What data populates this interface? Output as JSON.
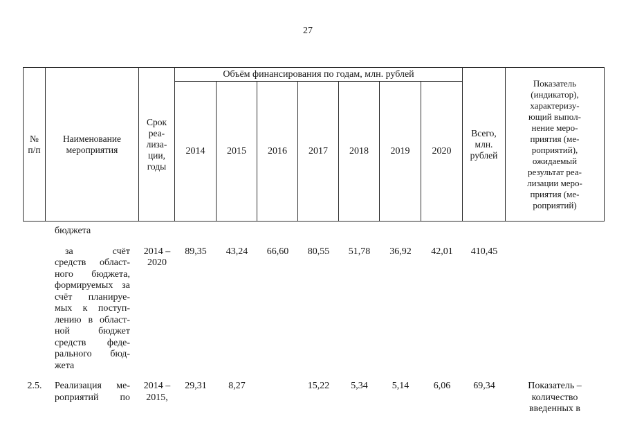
{
  "page": {
    "number": "27"
  },
  "table": {
    "header": {
      "num": "№\nп/п",
      "name": "Наименование\nмероприятия",
      "term": "Срок\nреа-\nлиза-\nции,\nгоды",
      "financing_span": "Объём финансирования по годам, млн. рублей",
      "years": [
        "2014",
        "2015",
        "2016",
        "2017",
        "2018",
        "2019",
        "2020"
      ],
      "total": "Всего,\nмлн.\nрублей",
      "indicator": "Показатель\n(индикатор),\nхарактеризу-\nющий выпол-\nнение меро-\nприятия (ме-\nроприятий),\nожидаемый\nрезультат реа-\nлизации меро-\nприятия (ме-\nроприятий)"
    },
    "rows": [
      {
        "num": "",
        "name": "бюджета",
        "term": "",
        "values": [
          "",
          "",
          "",
          "",
          "",
          "",
          ""
        ],
        "total": "",
        "indicator": ""
      },
      {
        "num": "",
        "name": "за счёт\nсредств област-\nного бюджета,\nформируемых за\nсчёт планируе-\nмых к поступ-\nлению в област-\nной бюджет\nсредств феде-\nрального бюд-\nжета",
        "term": "2014 –\n2020",
        "values": [
          "89,35",
          "43,24",
          "66,60",
          "80,55",
          "51,78",
          "36,92",
          "42,01"
        ],
        "total": "410,45",
        "indicator": ""
      },
      {
        "num": "2.5.",
        "name": "Реализация ме-\nроприятий по",
        "term": "2014 –\n2015,",
        "values": [
          "29,31",
          "8,27",
          "",
          "15,22",
          "5,34",
          "5,14",
          "6,06"
        ],
        "total": "69,34",
        "indicator": "Показатель –\nколичество\nвведенных в"
      }
    ]
  }
}
